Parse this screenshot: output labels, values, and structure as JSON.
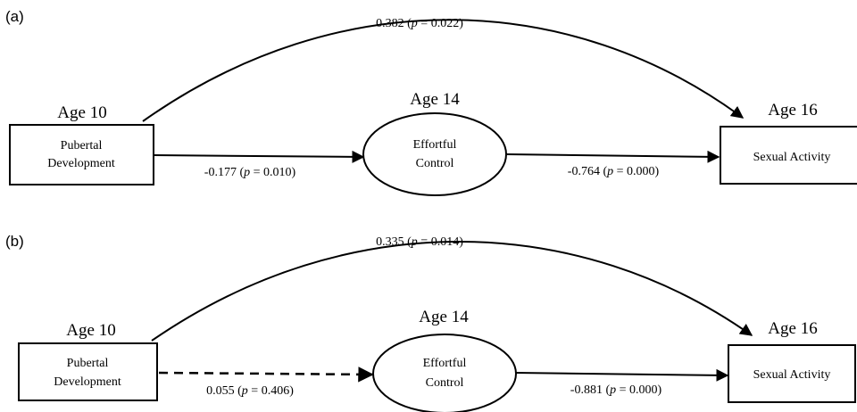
{
  "panels": [
    {
      "label": "(a)",
      "nodes": {
        "pubertal": {
          "age": "Age 10",
          "line1": "Pubertal",
          "line2": "Development"
        },
        "effortful": {
          "age": "Age 14",
          "line1": "Effortful",
          "line2": "Control"
        },
        "sexual": {
          "age": "Age 16",
          "line1": "Sexual Activity"
        }
      },
      "paths": {
        "direct": {
          "coef": "0.382",
          "p_sym": "p",
          "p_val": " = 0.022)",
          "style": "solid"
        },
        "pub_to_eff": {
          "coef": "-0.177",
          "p_sym": "p",
          "p_val": " = 0.010)",
          "style": "solid"
        },
        "eff_to_sex": {
          "coef": "-0.764",
          "p_sym": "p",
          "p_val": " = 0.000)",
          "style": "solid"
        }
      }
    },
    {
      "label": "(b)",
      "nodes": {
        "pubertal": {
          "age": "Age 10",
          "line1": "Pubertal",
          "line2": "Development"
        },
        "effortful": {
          "age": "Age 14",
          "line1": "Effortful",
          "line2": "Control"
        },
        "sexual": {
          "age": "Age 16",
          "line1": "Sexual Activity"
        }
      },
      "paths": {
        "direct": {
          "coef": "0.335",
          "p_sym": "p",
          "p_val": " = 0.014)",
          "style": "solid"
        },
        "pub_to_eff": {
          "coef": "0.055",
          "p_sym": "p",
          "p_val": " = 0.406)",
          "style": "dashed"
        },
        "eff_to_sex": {
          "coef": "-0.881",
          "p_sym": "p",
          "p_val": " = 0.000)",
          "style": "solid"
        }
      }
    }
  ]
}
